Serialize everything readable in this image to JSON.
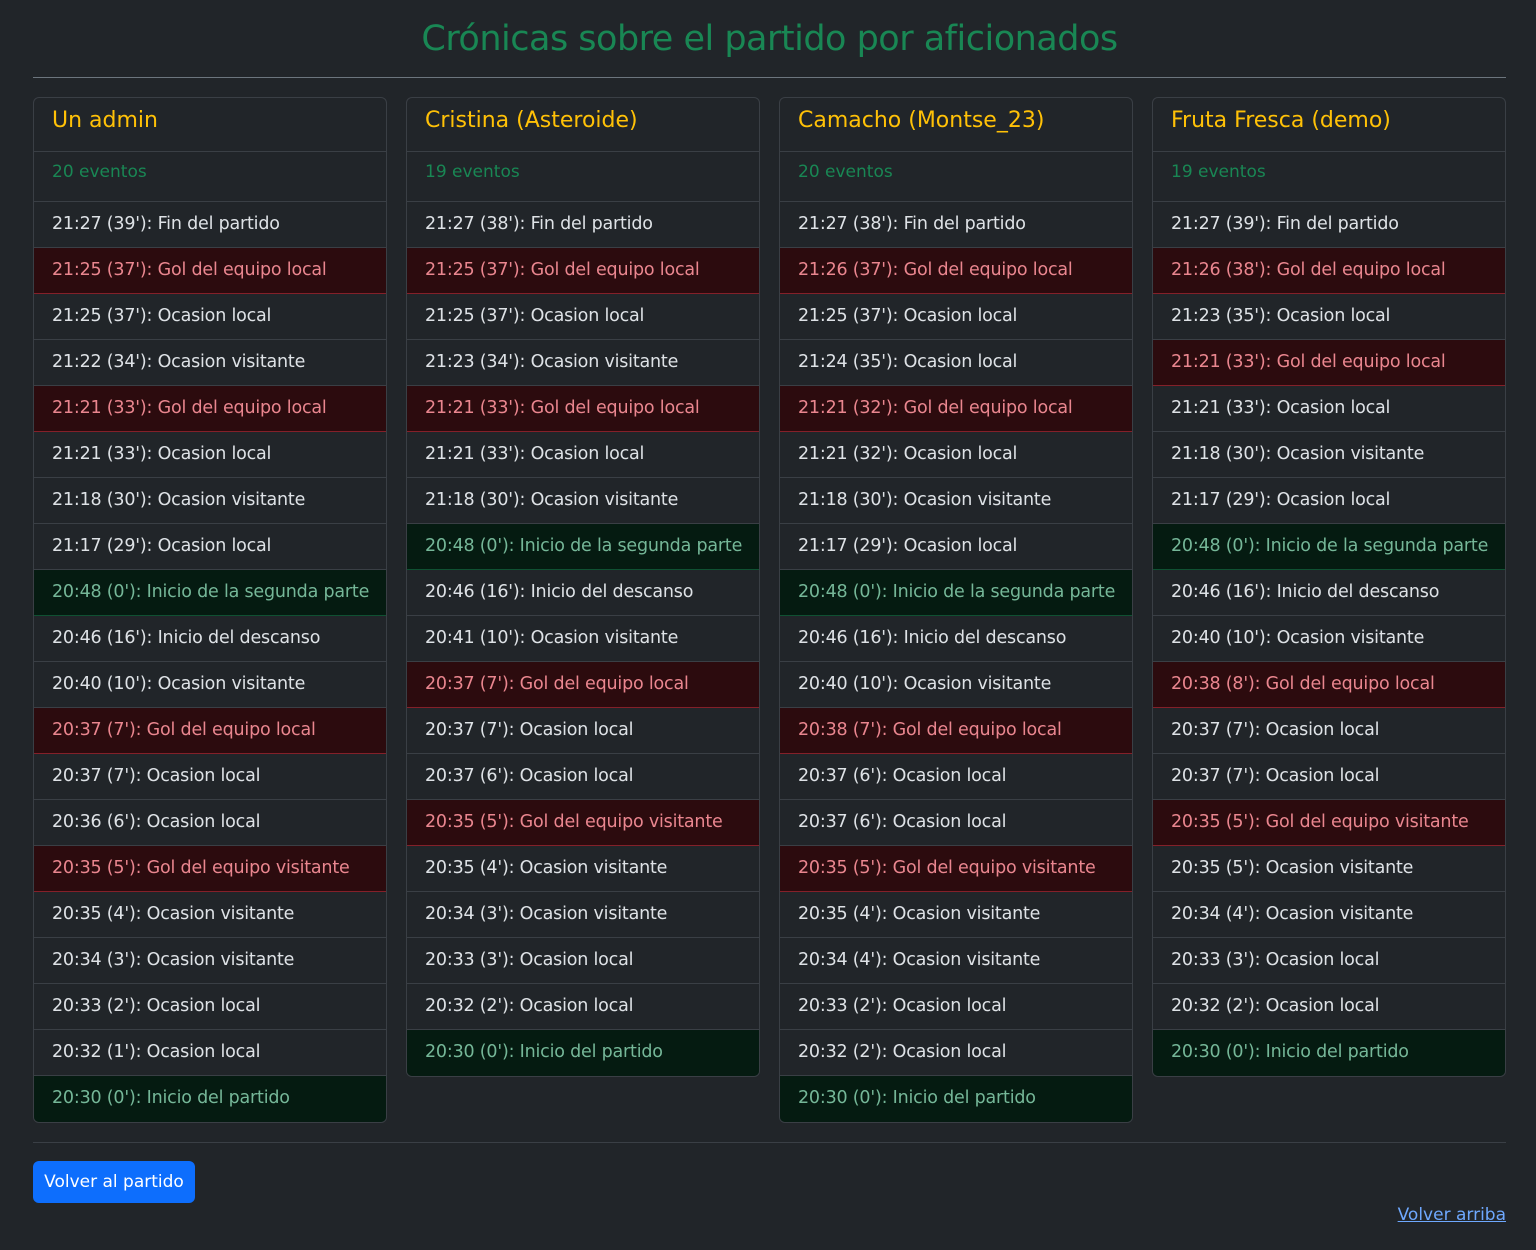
{
  "page": {
    "title": "Crónicas sobre el partido por aficionados",
    "back_button_label": "Volver al partido",
    "top_link_label": "Volver arriba"
  },
  "colors": {
    "background": "#212529",
    "title_green": "#198754",
    "author_yellow": "#ffc107",
    "goal_bg": "#2c0b0e",
    "goal_text": "#ea868f",
    "milestone_bg": "#051b11",
    "milestone_text": "#75b798",
    "button_blue": "#0d6efd",
    "link_blue": "#6ea8fe"
  },
  "chronicles": [
    {
      "author": "Un admin",
      "count": "20 eventos",
      "events": [
        {
          "text": "21:27 (39'): Fin del partido",
          "kind": "normal"
        },
        {
          "text": "21:25 (37'): Gol del equipo local",
          "kind": "goal"
        },
        {
          "text": "21:25 (37'): Ocasion local",
          "kind": "normal"
        },
        {
          "text": "21:22 (34'): Ocasion visitante",
          "kind": "normal"
        },
        {
          "text": "21:21 (33'): Gol del equipo local",
          "kind": "goal"
        },
        {
          "text": "21:21 (33'): Ocasion local",
          "kind": "normal"
        },
        {
          "text": "21:18 (30'): Ocasion visitante",
          "kind": "normal"
        },
        {
          "text": "21:17 (29'): Ocasion local",
          "kind": "normal"
        },
        {
          "text": "20:48 (0'): Inicio de la segunda parte",
          "kind": "milestone"
        },
        {
          "text": "20:46 (16'): Inicio del descanso",
          "kind": "normal"
        },
        {
          "text": "20:40 (10'): Ocasion visitante",
          "kind": "normal"
        },
        {
          "text": "20:37 (7'): Gol del equipo local",
          "kind": "goal"
        },
        {
          "text": "20:37 (7'): Ocasion local",
          "kind": "normal"
        },
        {
          "text": "20:36 (6'): Ocasion local",
          "kind": "normal"
        },
        {
          "text": "20:35 (5'): Gol del equipo visitante",
          "kind": "goal"
        },
        {
          "text": "20:35 (4'): Ocasion visitante",
          "kind": "normal"
        },
        {
          "text": "20:34 (3'): Ocasion visitante",
          "kind": "normal"
        },
        {
          "text": "20:33 (2'): Ocasion local",
          "kind": "normal"
        },
        {
          "text": "20:32 (1'): Ocasion local",
          "kind": "normal"
        },
        {
          "text": "20:30 (0'): Inicio del partido",
          "kind": "milestone"
        }
      ]
    },
    {
      "author": "Cristina (Asteroide)",
      "count": "19 eventos",
      "events": [
        {
          "text": "21:27 (38'): Fin del partido",
          "kind": "normal"
        },
        {
          "text": "21:25 (37'): Gol del equipo local",
          "kind": "goal"
        },
        {
          "text": "21:25 (37'): Ocasion local",
          "kind": "normal"
        },
        {
          "text": "21:23 (34'): Ocasion visitante",
          "kind": "normal"
        },
        {
          "text": "21:21 (33'): Gol del equipo local",
          "kind": "goal"
        },
        {
          "text": "21:21 (33'): Ocasion local",
          "kind": "normal"
        },
        {
          "text": "21:18 (30'): Ocasion visitante",
          "kind": "normal"
        },
        {
          "text": "20:48 (0'): Inicio de la segunda parte",
          "kind": "milestone"
        },
        {
          "text": "20:46 (16'): Inicio del descanso",
          "kind": "normal"
        },
        {
          "text": "20:41 (10'): Ocasion visitante",
          "kind": "normal"
        },
        {
          "text": "20:37 (7'): Gol del equipo local",
          "kind": "goal"
        },
        {
          "text": "20:37 (7'): Ocasion local",
          "kind": "normal"
        },
        {
          "text": "20:37 (6'): Ocasion local",
          "kind": "normal"
        },
        {
          "text": "20:35 (5'): Gol del equipo visitante",
          "kind": "goal"
        },
        {
          "text": "20:35 (4'): Ocasion visitante",
          "kind": "normal"
        },
        {
          "text": "20:34 (3'): Ocasion visitante",
          "kind": "normal"
        },
        {
          "text": "20:33 (3'): Ocasion local",
          "kind": "normal"
        },
        {
          "text": "20:32 (2'): Ocasion local",
          "kind": "normal"
        },
        {
          "text": "20:30 (0'): Inicio del partido",
          "kind": "milestone"
        }
      ]
    },
    {
      "author": "Camacho (Montse_23)",
      "count": "20 eventos",
      "events": [
        {
          "text": "21:27 (38'): Fin del partido",
          "kind": "normal"
        },
        {
          "text": "21:26 (37'): Gol del equipo local",
          "kind": "goal"
        },
        {
          "text": "21:25 (37'): Ocasion local",
          "kind": "normal"
        },
        {
          "text": "21:24 (35'): Ocasion local",
          "kind": "normal"
        },
        {
          "text": "21:21 (32'): Gol del equipo local",
          "kind": "goal"
        },
        {
          "text": "21:21 (32'): Ocasion local",
          "kind": "normal"
        },
        {
          "text": "21:18 (30'): Ocasion visitante",
          "kind": "normal"
        },
        {
          "text": "21:17 (29'): Ocasion local",
          "kind": "normal"
        },
        {
          "text": "20:48 (0'): Inicio de la segunda parte",
          "kind": "milestone"
        },
        {
          "text": "20:46 (16'): Inicio del descanso",
          "kind": "normal"
        },
        {
          "text": "20:40 (10'): Ocasion visitante",
          "kind": "normal"
        },
        {
          "text": "20:38 (7'): Gol del equipo local",
          "kind": "goal"
        },
        {
          "text": "20:37 (6'): Ocasion local",
          "kind": "normal"
        },
        {
          "text": "20:37 (6'): Ocasion local",
          "kind": "normal"
        },
        {
          "text": "20:35 (5'): Gol del equipo visitante",
          "kind": "goal"
        },
        {
          "text": "20:35 (4'): Ocasion visitante",
          "kind": "normal"
        },
        {
          "text": "20:34 (4'): Ocasion visitante",
          "kind": "normal"
        },
        {
          "text": "20:33 (2'): Ocasion local",
          "kind": "normal"
        },
        {
          "text": "20:32 (2'): Ocasion local",
          "kind": "normal"
        },
        {
          "text": "20:30 (0'): Inicio del partido",
          "kind": "milestone"
        }
      ]
    },
    {
      "author": "Fruta Fresca (demo)",
      "count": "19 eventos",
      "events": [
        {
          "text": "21:27 (39'): Fin del partido",
          "kind": "normal"
        },
        {
          "text": "21:26 (38'): Gol del equipo local",
          "kind": "goal"
        },
        {
          "text": "21:23 (35'): Ocasion local",
          "kind": "normal"
        },
        {
          "text": "21:21 (33'): Gol del equipo local",
          "kind": "goal"
        },
        {
          "text": "21:21 (33'): Ocasion local",
          "kind": "normal"
        },
        {
          "text": "21:18 (30'): Ocasion visitante",
          "kind": "normal"
        },
        {
          "text": "21:17 (29'): Ocasion local",
          "kind": "normal"
        },
        {
          "text": "20:48 (0'): Inicio de la segunda parte",
          "kind": "milestone"
        },
        {
          "text": "20:46 (16'): Inicio del descanso",
          "kind": "normal"
        },
        {
          "text": "20:40 (10'): Ocasion visitante",
          "kind": "normal"
        },
        {
          "text": "20:38 (8'): Gol del equipo local",
          "kind": "goal"
        },
        {
          "text": "20:37 (7'): Ocasion local",
          "kind": "normal"
        },
        {
          "text": "20:37 (7'): Ocasion local",
          "kind": "normal"
        },
        {
          "text": "20:35 (5'): Gol del equipo visitante",
          "kind": "goal"
        },
        {
          "text": "20:35 (5'): Ocasion visitante",
          "kind": "normal"
        },
        {
          "text": "20:34 (4'): Ocasion visitante",
          "kind": "normal"
        },
        {
          "text": "20:33 (3'): Ocasion local",
          "kind": "normal"
        },
        {
          "text": "20:32 (2'): Ocasion local",
          "kind": "normal"
        },
        {
          "text": "20:30 (0'): Inicio del partido",
          "kind": "milestone"
        }
      ]
    }
  ]
}
